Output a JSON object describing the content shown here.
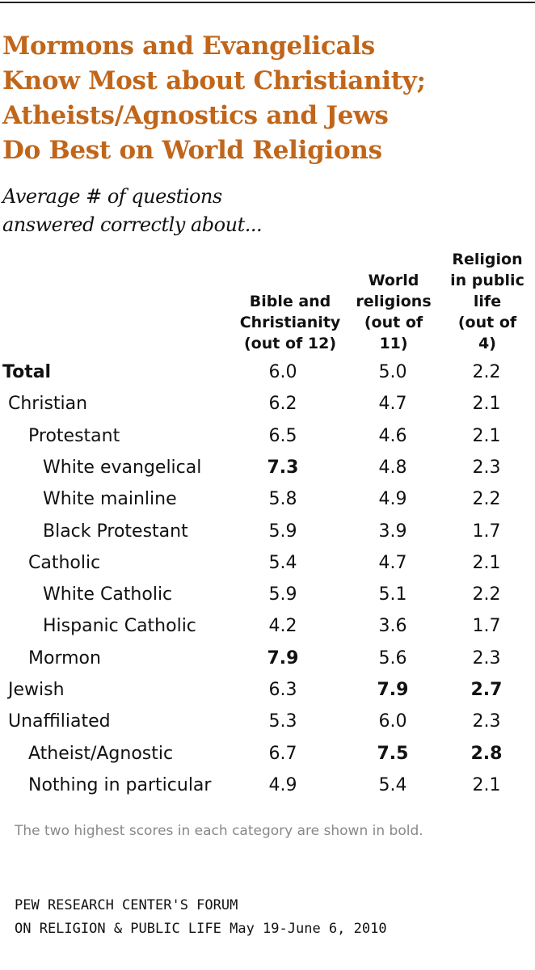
{
  "chart_data": {
    "type": "table",
    "title": "Mormons and Evangelicals\nKnow Most about Christianity;\nAtheists/Agnostics and Jews\nDo Best on World Religions",
    "subtitle": "Average # of questions\nanswered correctly about...",
    "columns": [
      "Bible and\nChristianity\n(out of 12)",
      "World\nreligions\n(out of\n11)",
      "Religion\nin public\nlife\n(out of\n4)"
    ],
    "rows": [
      {
        "label": "Total",
        "level": 0,
        "label_bold": true,
        "values": [
          "6.0",
          "5.0",
          "2.2"
        ],
        "bold": [
          false,
          false,
          false
        ]
      },
      {
        "label": "Christian",
        "level": 1,
        "label_bold": false,
        "values": [
          "6.2",
          "4.7",
          "2.1"
        ],
        "bold": [
          false,
          false,
          false
        ]
      },
      {
        "label": "Protestant",
        "level": 2,
        "label_bold": false,
        "values": [
          "6.5",
          "4.6",
          "2.1"
        ],
        "bold": [
          false,
          false,
          false
        ]
      },
      {
        "label": "White evangelical",
        "level": 3,
        "label_bold": false,
        "values": [
          "7.3",
          "4.8",
          "2.3"
        ],
        "bold": [
          true,
          false,
          false
        ]
      },
      {
        "label": "White mainline",
        "level": 3,
        "label_bold": false,
        "values": [
          "5.8",
          "4.9",
          "2.2"
        ],
        "bold": [
          false,
          false,
          false
        ]
      },
      {
        "label": "Black Protestant",
        "level": 3,
        "label_bold": false,
        "values": [
          "5.9",
          "3.9",
          "1.7"
        ],
        "bold": [
          false,
          false,
          false
        ]
      },
      {
        "label": "Catholic",
        "level": 2,
        "label_bold": false,
        "values": [
          "5.4",
          "4.7",
          "2.1"
        ],
        "bold": [
          false,
          false,
          false
        ]
      },
      {
        "label": "White Catholic",
        "level": 3,
        "label_bold": false,
        "values": [
          "5.9",
          "5.1",
          "2.2"
        ],
        "bold": [
          false,
          false,
          false
        ]
      },
      {
        "label": "Hispanic Catholic",
        "level": 3,
        "label_bold": false,
        "values": [
          "4.2",
          "3.6",
          "1.7"
        ],
        "bold": [
          false,
          false,
          false
        ]
      },
      {
        "label": "Mormon",
        "level": 2,
        "label_bold": false,
        "values": [
          "7.9",
          "5.6",
          "2.3"
        ],
        "bold": [
          true,
          false,
          false
        ]
      },
      {
        "label": "Jewish",
        "level": 1,
        "label_bold": false,
        "values": [
          "6.3",
          "7.9",
          "2.7"
        ],
        "bold": [
          false,
          true,
          true
        ]
      },
      {
        "label": "Unaffiliated",
        "level": 1,
        "label_bold": false,
        "values": [
          "5.3",
          "6.0",
          "2.3"
        ],
        "bold": [
          false,
          false,
          false
        ]
      },
      {
        "label": "Atheist/Agnostic",
        "level": 2,
        "label_bold": false,
        "values": [
          "6.7",
          "7.5",
          "2.8"
        ],
        "bold": [
          false,
          true,
          true
        ]
      },
      {
        "label": "Nothing in particular",
        "level": 2,
        "label_bold": false,
        "values": [
          "4.9",
          "5.4",
          "2.1"
        ],
        "bold": [
          false,
          false,
          false
        ]
      }
    ],
    "note": "The two highest scores in each category are shown in bold.",
    "source": "PEW RESEARCH CENTER'S FORUM\nON RELIGION & PUBLIC LIFE May 19-June 6, 2010"
  },
  "colors": {
    "title": "#c0661b",
    "note": "#888888",
    "text": "#111111"
  }
}
